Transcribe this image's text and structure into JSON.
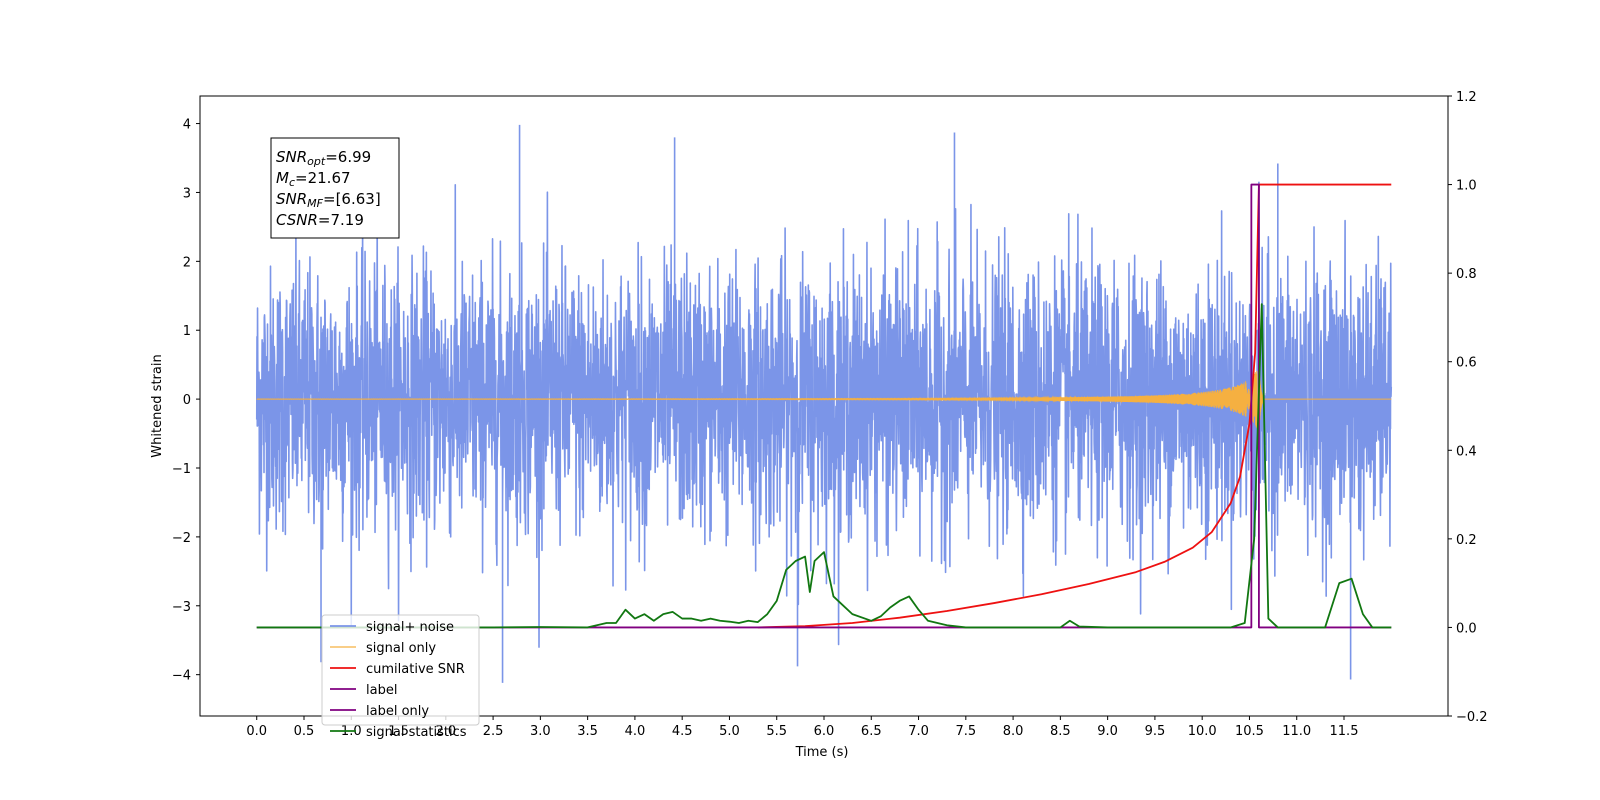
{
  "chart_data": {
    "type": "line",
    "xlabel": "Time (s)",
    "ylabel": "Whitened strain",
    "y2label": "",
    "xlim": [
      -0.6,
      12.6
    ],
    "ylim": [
      -4.6,
      4.4
    ],
    "y2lim": [
      -0.2,
      1.2
    ],
    "x_ticks": [
      0.0,
      0.5,
      1.0,
      1.5,
      2.0,
      2.5,
      3.0,
      3.5,
      4.0,
      4.5,
      5.0,
      5.5,
      6.0,
      6.5,
      7.0,
      7.5,
      8.0,
      8.5,
      9.0,
      9.5,
      10.0,
      10.5,
      11.0,
      11.5
    ],
    "x_tick_labels": [
      "0.0",
      "0.5",
      "1.0",
      "1.5",
      "2.0",
      "2.5",
      "3.0",
      "3.5",
      "4.0",
      "4.5",
      "5.0",
      "5.5",
      "6.0",
      "6.5",
      "7.0",
      "7.5",
      "8.0",
      "8.5",
      "9.0",
      "9.5",
      "10.0",
      "10.5",
      "11.0",
      "11.5"
    ],
    "y_ticks": [
      -4,
      -3,
      -2,
      -1,
      0,
      1,
      2,
      3,
      4
    ],
    "y_tick_labels": [
      "−4",
      "−3",
      "−2",
      "−1",
      "0",
      "1",
      "2",
      "3",
      "4"
    ],
    "y2_ticks": [
      -0.2,
      0.0,
      0.2,
      0.4,
      0.6,
      0.8,
      1.0,
      1.2
    ],
    "y2_tick_labels": [
      "−0.2",
      "0.0",
      "0.2",
      "0.4",
      "0.6",
      "0.8",
      "1.0",
      "1.2"
    ],
    "grid": false,
    "legend_position": "lower-left",
    "annotation": {
      "lines": [
        {
          "sym": "SNR",
          "sub": "opt",
          "value": "=6.99"
        },
        {
          "sym": "M",
          "sub": "c",
          "value": "=21.67"
        },
        {
          "sym": "SNR",
          "sub": "MF",
          "value": "=[6.63]"
        },
        {
          "sym": "CSNR",
          "sub": "",
          "value": "=7.19"
        }
      ]
    },
    "series": [
      {
        "name": "signal+ noise",
        "axis": "left",
        "color": "#7b95e8",
        "kind": "noise",
        "x_range": [
          0.0,
          12.0
        ],
        "amplitude_std": 1.0,
        "visible_peaks": [
          {
            "x": 2.78,
            "y": 3.98
          },
          {
            "x": 7.38,
            "y": 3.87
          },
          {
            "x": 4.42,
            "y": 3.8
          },
          {
            "x": 2.6,
            "y": -4.12
          },
          {
            "x": 11.57,
            "y": -4.07
          },
          {
            "x": 5.72,
            "y": -3.88
          },
          {
            "x": 0.68,
            "y": -3.82
          },
          {
            "x": 10.8,
            "y": 3.42
          }
        ]
      },
      {
        "name": "signal only",
        "axis": "left",
        "color": "#f5b041",
        "kind": "chirp",
        "merger_time": 10.6,
        "peak_amplitude": 0.55,
        "x_range": [
          0.0,
          12.0
        ]
      },
      {
        "name": "cumilative SNR",
        "axis": "right",
        "color": "#ee1111",
        "points": [
          [
            5.3,
            0.0
          ],
          [
            5.8,
            0.003
          ],
          [
            6.3,
            0.01
          ],
          [
            6.8,
            0.022
          ],
          [
            7.3,
            0.037
          ],
          [
            7.8,
            0.055
          ],
          [
            8.3,
            0.075
          ],
          [
            8.8,
            0.098
          ],
          [
            9.3,
            0.125
          ],
          [
            9.6,
            0.148
          ],
          [
            9.9,
            0.18
          ],
          [
            10.1,
            0.215
          ],
          [
            10.3,
            0.28
          ],
          [
            10.4,
            0.34
          ],
          [
            10.5,
            0.46
          ],
          [
            10.56,
            0.62
          ],
          [
            10.6,
            1.0
          ],
          [
            12.0,
            1.0
          ]
        ]
      },
      {
        "name": "label",
        "axis": "right",
        "color": "#800080",
        "points": [
          [
            0.0,
            0.0
          ],
          [
            10.52,
            0.0
          ],
          [
            10.52,
            1.0
          ],
          [
            10.6,
            1.0
          ],
          [
            10.6,
            0.0
          ],
          [
            12.0,
            0.0
          ]
        ]
      },
      {
        "name": "label only",
        "axis": "right",
        "color": "#800080",
        "hidden": true,
        "points": []
      },
      {
        "name": "signal statistics",
        "axis": "right",
        "color": "#117711",
        "points": [
          [
            0.0,
            0.0
          ],
          [
            2.5,
            0.0
          ],
          [
            3.0,
            0.001
          ],
          [
            3.5,
            0.0
          ],
          [
            3.7,
            0.01
          ],
          [
            3.8,
            0.01
          ],
          [
            3.9,
            0.04
          ],
          [
            4.0,
            0.02
          ],
          [
            4.1,
            0.03
          ],
          [
            4.2,
            0.015
          ],
          [
            4.3,
            0.03
          ],
          [
            4.4,
            0.035
          ],
          [
            4.5,
            0.02
          ],
          [
            4.6,
            0.02
          ],
          [
            4.7,
            0.015
          ],
          [
            4.8,
            0.02
          ],
          [
            4.9,
            0.015
          ],
          [
            5.0,
            0.013
          ],
          [
            5.1,
            0.01
          ],
          [
            5.2,
            0.015
          ],
          [
            5.3,
            0.012
          ],
          [
            5.4,
            0.03
          ],
          [
            5.5,
            0.06
          ],
          [
            5.6,
            0.13
          ],
          [
            5.7,
            0.15
          ],
          [
            5.8,
            0.16
          ],
          [
            5.85,
            0.08
          ],
          [
            5.9,
            0.15
          ],
          [
            6.0,
            0.17
          ],
          [
            6.1,
            0.07
          ],
          [
            6.2,
            0.05
          ],
          [
            6.3,
            0.03
          ],
          [
            6.5,
            0.015
          ],
          [
            6.6,
            0.025
          ],
          [
            6.7,
            0.045
          ],
          [
            6.8,
            0.06
          ],
          [
            6.9,
            0.07
          ],
          [
            7.0,
            0.04
          ],
          [
            7.1,
            0.015
          ],
          [
            7.3,
            0.005
          ],
          [
            7.5,
            0.0
          ],
          [
            8.5,
            0.0
          ],
          [
            8.6,
            0.015
          ],
          [
            8.7,
            0.002
          ],
          [
            9.0,
            0.0
          ],
          [
            10.3,
            0.0
          ],
          [
            10.45,
            0.01
          ],
          [
            10.55,
            0.2
          ],
          [
            10.63,
            0.73
          ],
          [
            10.7,
            0.02
          ],
          [
            10.8,
            0.0
          ],
          [
            11.3,
            0.0
          ],
          [
            11.45,
            0.1
          ],
          [
            11.58,
            0.11
          ],
          [
            11.7,
            0.03
          ],
          [
            11.8,
            0.0
          ],
          [
            12.0,
            0.0
          ]
        ]
      }
    ]
  }
}
